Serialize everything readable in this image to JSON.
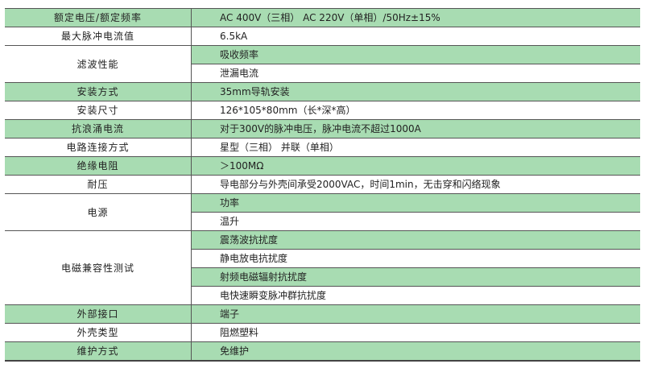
{
  "colors": {
    "row_highlight": "#a8dcb2",
    "border": "#555555"
  },
  "rows": [
    {
      "label": "额定电压/额定频率",
      "values": [
        "AC 400V（三相） AC 220V（单相）/50Hz±15%"
      ]
    },
    {
      "label": "最大脉冲电流值",
      "values": [
        "6.5kA"
      ]
    },
    {
      "label": "滤波性能",
      "values": [
        "吸收频率",
        "泄漏电流"
      ]
    },
    {
      "label": "安装方式",
      "values": [
        "35mm导轨安装"
      ]
    },
    {
      "label": "安装尺寸",
      "values": [
        "126*105*80mm（长*深*高）"
      ]
    },
    {
      "label": "抗浪涌电流",
      "values": [
        "对于300V的脉冲电压，脉冲电流不超过1000A"
      ]
    },
    {
      "label": "电路连接方式",
      "values": [
        "星型（三相） 并联（单相）"
      ]
    },
    {
      "label": "绝缘电阻",
      "values": [
        "＞100MΩ"
      ]
    },
    {
      "label": "耐压",
      "values": [
        "导电部分与外壳间承受2000VAC，时间1min，无击穿和闪络现象"
      ]
    },
    {
      "label": "电源",
      "values": [
        "功率",
        "温升"
      ]
    },
    {
      "label": "电磁兼容性测试",
      "values": [
        "震荡波抗扰度",
        "静电放电抗扰度",
        "射频电磁辐射抗扰度",
        "电快速瞬变脉冲群抗扰度"
      ]
    },
    {
      "label": "外部接口",
      "values": [
        "端子"
      ]
    },
    {
      "label": "外壳类型",
      "values": [
        "阻燃塑料"
      ]
    },
    {
      "label": "维护方式",
      "values": [
        "免维护"
      ]
    }
  ]
}
